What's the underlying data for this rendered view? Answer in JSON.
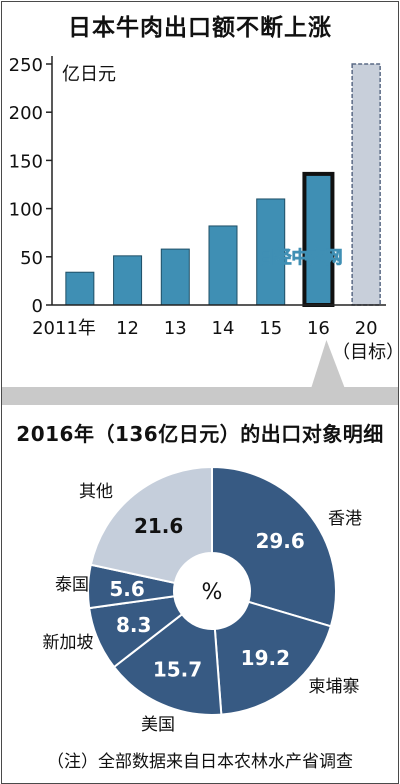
{
  "bar_chart": {
    "title": "日本牛肉出口额不断上涨",
    "unit": "亿日元",
    "yticks": [
      "0",
      "50",
      "100",
      "150",
      "200",
      "250"
    ],
    "watermark": "日经中文网"
  },
  "pie_chart": {
    "title": "2016年（136亿日元）的出口对象明细",
    "center": "%"
  },
  "footer": {
    "note": "（注）全部数据来自日本农林水产省调查"
  },
  "chart_data": [
    {
      "type": "bar",
      "title": "日本牛肉出口额不断上涨",
      "ylabel": "亿日元",
      "ylim": [
        0,
        250
      ],
      "categories": [
        "2011年",
        "12",
        "13",
        "14",
        "15",
        "16",
        "20"
      ],
      "category_sublabels": [
        "",
        "",
        "",
        "",
        "",
        "",
        "（目标）"
      ],
      "values": [
        34,
        51,
        58,
        82,
        110,
        136,
        250
      ],
      "highlight_index": 5,
      "target_index": 6,
      "colors": {
        "bar": "#3f8fb4",
        "highlight_border": "#111111",
        "target": "#c8cfda"
      }
    },
    {
      "type": "pie",
      "title": "2016年（136亿日元）的出口对象明细",
      "unit": "%",
      "slices": [
        {
          "label": "香港",
          "value": 29.6,
          "color": "#375a83"
        },
        {
          "label": "柬埔寨",
          "value": 19.2,
          "color": "#375a83"
        },
        {
          "label": "美国",
          "value": 15.7,
          "color": "#375a83"
        },
        {
          "label": "新加坡",
          "value": 8.3,
          "color": "#375a83"
        },
        {
          "label": "泰国",
          "value": 5.6,
          "color": "#375a83"
        },
        {
          "label": "其他",
          "value": 21.6,
          "color": "#c5cedb"
        }
      ]
    }
  ]
}
